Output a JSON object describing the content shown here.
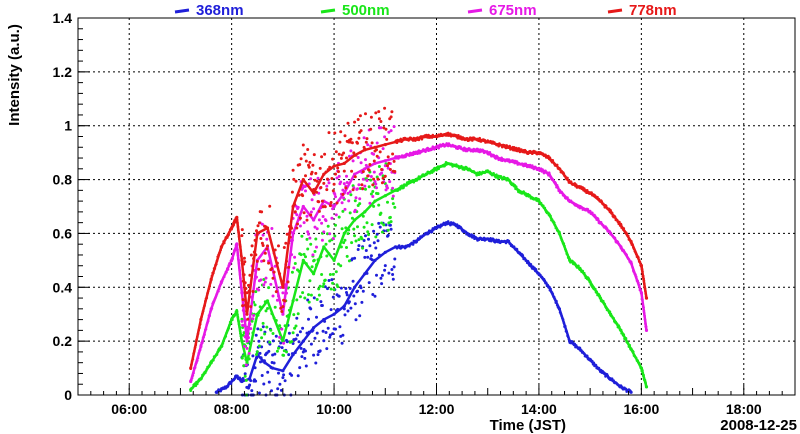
{
  "chart_data": {
    "type": "scatter",
    "title": "",
    "xlabel": "Time (JST)",
    "ylabel": "Intensity (a.u.)",
    "date_label": "2008-12-25",
    "xlim": [
      5.0,
      19.0
    ],
    "ylim": [
      0,
      1.4
    ],
    "grid": true,
    "legend_position": "top",
    "x_ticks": [
      {
        "value": 6,
        "label": "06:00"
      },
      {
        "value": 8,
        "label": "08:00"
      },
      {
        "value": 10,
        "label": "10:00"
      },
      {
        "value": 12,
        "label": "12:00"
      },
      {
        "value": 14,
        "label": "14:00"
      },
      {
        "value": 16,
        "label": "16:00"
      },
      {
        "value": 18,
        "label": "18:00"
      }
    ],
    "y_ticks": [
      {
        "value": 0,
        "label": "0"
      },
      {
        "value": 0.2,
        "label": "0.2"
      },
      {
        "value": 0.4,
        "label": "0.4"
      },
      {
        "value": 0.6,
        "label": "0.6"
      },
      {
        "value": 0.8,
        "label": "0.8"
      },
      {
        "value": 1.0,
        "label": "1"
      },
      {
        "value": 1.2,
        "label": "1.2"
      },
      {
        "value": 1.4,
        "label": "1.4"
      }
    ],
    "series": [
      {
        "name": "368nm",
        "color": "#1f1fd9",
        "x": [
          7.7,
          7.9,
          8.1,
          8.2,
          8.35,
          8.5,
          8.65,
          8.8,
          9.0,
          9.2,
          9.4,
          9.6,
          9.8,
          10.0,
          10.2,
          10.4,
          10.6,
          10.8,
          11.0,
          11.2,
          11.4,
          11.6,
          11.8,
          12.0,
          12.2,
          12.4,
          12.6,
          12.8,
          13.0,
          13.2,
          13.4,
          13.6,
          13.8,
          14.0,
          14.2,
          14.4,
          14.6,
          14.8,
          15.0,
          15.2,
          15.4,
          15.6,
          15.8
        ],
        "y": [
          0.01,
          0.03,
          0.07,
          0.05,
          0.06,
          0.15,
          0.12,
          0.1,
          0.09,
          0.15,
          0.2,
          0.25,
          0.28,
          0.3,
          0.33,
          0.4,
          0.45,
          0.5,
          0.53,
          0.55,
          0.55,
          0.57,
          0.6,
          0.62,
          0.64,
          0.63,
          0.6,
          0.58,
          0.58,
          0.57,
          0.57,
          0.53,
          0.49,
          0.45,
          0.4,
          0.32,
          0.2,
          0.17,
          0.13,
          0.09,
          0.06,
          0.03,
          0.01
        ]
      },
      {
        "name": "500nm",
        "color": "#19e619",
        "x": [
          7.2,
          7.4,
          7.6,
          7.8,
          8.0,
          8.1,
          8.2,
          8.3,
          8.5,
          8.7,
          9.0,
          9.2,
          9.4,
          9.6,
          9.8,
          10.0,
          10.2,
          10.4,
          10.6,
          10.8,
          11.0,
          11.2,
          11.4,
          11.6,
          11.8,
          12.0,
          12.2,
          12.4,
          12.6,
          12.8,
          13.0,
          13.2,
          13.4,
          13.6,
          13.8,
          14.0,
          14.2,
          14.4,
          14.6,
          14.8,
          15.0,
          15.2,
          15.4,
          15.6,
          15.8,
          16.0,
          16.1
        ],
        "y": [
          0.02,
          0.06,
          0.12,
          0.18,
          0.28,
          0.31,
          0.2,
          0.12,
          0.3,
          0.35,
          0.2,
          0.35,
          0.5,
          0.45,
          0.55,
          0.5,
          0.6,
          0.65,
          0.68,
          0.72,
          0.74,
          0.76,
          0.78,
          0.8,
          0.82,
          0.84,
          0.86,
          0.85,
          0.84,
          0.82,
          0.83,
          0.81,
          0.8,
          0.76,
          0.74,
          0.72,
          0.67,
          0.6,
          0.5,
          0.47,
          0.42,
          0.36,
          0.3,
          0.24,
          0.17,
          0.1,
          0.03
        ]
      },
      {
        "name": "675nm",
        "color": "#e619e6",
        "x": [
          7.2,
          7.4,
          7.6,
          7.8,
          8.0,
          8.1,
          8.2,
          8.3,
          8.5,
          8.7,
          9.0,
          9.2,
          9.4,
          9.6,
          9.8,
          10.0,
          10.2,
          10.4,
          10.6,
          10.8,
          11.0,
          11.2,
          11.4,
          11.6,
          11.8,
          12.0,
          12.2,
          12.4,
          12.6,
          12.8,
          13.0,
          13.2,
          13.4,
          13.6,
          13.8,
          14.0,
          14.2,
          14.4,
          14.6,
          14.8,
          15.0,
          15.2,
          15.4,
          15.6,
          15.8,
          16.0,
          16.1
        ],
        "y": [
          0.05,
          0.18,
          0.32,
          0.42,
          0.5,
          0.56,
          0.38,
          0.2,
          0.5,
          0.55,
          0.3,
          0.6,
          0.7,
          0.65,
          0.72,
          0.7,
          0.75,
          0.82,
          0.84,
          0.86,
          0.87,
          0.88,
          0.89,
          0.9,
          0.91,
          0.92,
          0.93,
          0.92,
          0.91,
          0.91,
          0.9,
          0.88,
          0.87,
          0.86,
          0.85,
          0.84,
          0.82,
          0.76,
          0.72,
          0.7,
          0.68,
          0.64,
          0.6,
          0.55,
          0.49,
          0.38,
          0.24
        ]
      },
      {
        "name": "778nm",
        "color": "#e61919",
        "x": [
          7.2,
          7.4,
          7.6,
          7.8,
          8.0,
          8.1,
          8.2,
          8.3,
          8.5,
          8.7,
          9.0,
          9.2,
          9.4,
          9.6,
          9.8,
          10.0,
          10.2,
          10.4,
          10.6,
          10.8,
          11.0,
          11.2,
          11.4,
          11.6,
          11.8,
          12.0,
          12.2,
          12.4,
          12.6,
          12.8,
          13.0,
          13.2,
          13.4,
          13.6,
          13.8,
          14.0,
          14.2,
          14.4,
          14.6,
          14.8,
          15.0,
          15.2,
          15.4,
          15.6,
          15.8,
          16.0,
          16.1
        ],
        "y": [
          0.1,
          0.28,
          0.43,
          0.55,
          0.62,
          0.66,
          0.5,
          0.3,
          0.6,
          0.62,
          0.4,
          0.7,
          0.8,
          0.75,
          0.82,
          0.85,
          0.86,
          0.89,
          0.91,
          0.92,
          0.93,
          0.94,
          0.95,
          0.95,
          0.96,
          0.96,
          0.97,
          0.96,
          0.95,
          0.95,
          0.94,
          0.93,
          0.92,
          0.91,
          0.9,
          0.9,
          0.88,
          0.84,
          0.79,
          0.77,
          0.75,
          0.72,
          0.68,
          0.63,
          0.57,
          0.48,
          0.36
        ]
      }
    ]
  }
}
